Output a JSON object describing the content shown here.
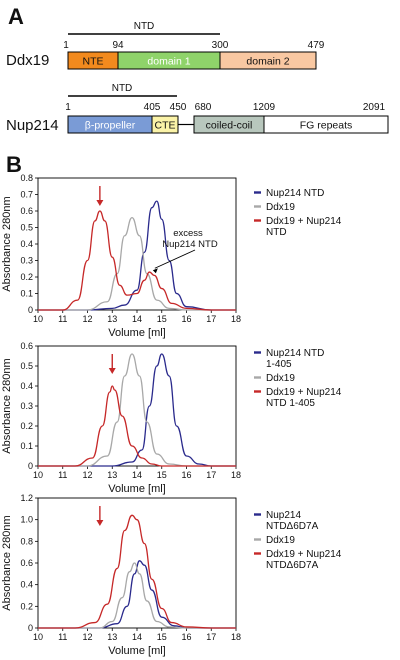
{
  "panels": {
    "a": "A",
    "b": "B"
  },
  "ntd_label": "NTD",
  "ddx19": {
    "name": "Ddx19",
    "positions": [
      "1",
      "94",
      "300",
      "479"
    ],
    "domains": [
      {
        "label": "NTE",
        "color": "#f28a1e",
        "text": "dark"
      },
      {
        "label": "domain 1",
        "color": "#8fd36a",
        "text": "light"
      },
      {
        "label": "domain 2",
        "color": "#f9c8a2",
        "text": "dark"
      }
    ]
  },
  "nup214": {
    "name": "Nup214",
    "positions": [
      "1",
      "405",
      "450",
      "680",
      "1209",
      "2091"
    ],
    "domains": [
      {
        "label": "β-propeller",
        "color": "#7a9bd6",
        "text": "light"
      },
      {
        "label": "CTE",
        "color": "#fbf3a8",
        "text": "dark"
      },
      {
        "label": "coiled-coil",
        "color": "#b8c7bd",
        "text": "dark"
      },
      {
        "label": "FG repeats",
        "color": "#ffffff",
        "text": "dark"
      }
    ]
  },
  "chart_data": [
    {
      "type": "line",
      "xlabel": "Volume [ml]",
      "ylabel": "Absorbance 280nm",
      "xlim": [
        10,
        18
      ],
      "ylim": [
        0,
        0.8
      ],
      "xticks": [
        "10",
        "11",
        "12",
        "13",
        "14",
        "15",
        "16",
        "17",
        "18"
      ],
      "yticks": [
        "0",
        "0.1",
        "0.2",
        "0.3",
        "0.4",
        "0.5",
        "0.6",
        "0.7",
        "0.8"
      ],
      "legend": "right",
      "annotation": [
        "excess",
        "Nup214 NTD"
      ],
      "arrow_x": 12.5,
      "series": [
        {
          "name": "Nup214 NTD",
          "color": "#2a2a8c",
          "x": [
            10.0,
            12.0,
            13.0,
            13.5,
            14.0,
            14.3,
            14.6,
            14.8,
            15.0,
            15.3,
            15.6,
            16.0,
            17.0,
            18.0
          ],
          "y": [
            0.0,
            0.0,
            0.01,
            0.03,
            0.12,
            0.35,
            0.62,
            0.66,
            0.55,
            0.3,
            0.1,
            0.02,
            0.0,
            0.0
          ]
        },
        {
          "name": "Ddx19",
          "color": "#a8a8a8",
          "x": [
            10.0,
            12.0,
            12.8,
            13.2,
            13.5,
            13.8,
            14.1,
            14.4,
            14.8,
            15.3,
            16.0,
            17.0,
            18.0
          ],
          "y": [
            0.0,
            0.0,
            0.05,
            0.22,
            0.45,
            0.56,
            0.45,
            0.22,
            0.06,
            0.01,
            0.0,
            0.0,
            0.0
          ]
        },
        {
          "name": "Ddx19 + Nup214 NTD",
          "color": "#c62828",
          "x": [
            10.0,
            11.0,
            11.6,
            12.0,
            12.3,
            12.5,
            12.7,
            13.0,
            13.3,
            13.6,
            14.0,
            14.3,
            14.5,
            14.7,
            15.0,
            15.4,
            16.0,
            17.0,
            18.0
          ],
          "y": [
            0.0,
            0.0,
            0.06,
            0.3,
            0.54,
            0.6,
            0.54,
            0.32,
            0.15,
            0.09,
            0.1,
            0.18,
            0.23,
            0.21,
            0.13,
            0.04,
            0.01,
            0.0,
            0.0
          ]
        }
      ]
    },
    {
      "type": "line",
      "xlabel": "Volume [ml]",
      "ylabel": "Absorbance 280nm",
      "xlim": [
        10,
        18
      ],
      "ylim": [
        0,
        0.6
      ],
      "xticks": [
        "10",
        "11",
        "12",
        "13",
        "14",
        "15",
        "16",
        "17",
        "18"
      ],
      "yticks": [
        "0",
        "0.1",
        "0.2",
        "0.3",
        "0.4",
        "0.5",
        "0.6"
      ],
      "legend": "right",
      "arrow_x": 13.0,
      "series": [
        {
          "name": "Nup214 NTD 1-405",
          "color": "#2a2a8c",
          "x": [
            10.0,
            13.0,
            13.8,
            14.2,
            14.5,
            14.8,
            15.0,
            15.3,
            15.6,
            16.0,
            16.5,
            17.0,
            18.0
          ],
          "y": [
            0.0,
            0.0,
            0.02,
            0.08,
            0.3,
            0.5,
            0.56,
            0.45,
            0.2,
            0.05,
            0.01,
            0.0,
            0.0
          ]
        },
        {
          "name": "Ddx19",
          "color": "#a8a8a8",
          "x": [
            10.0,
            12.0,
            12.8,
            13.2,
            13.5,
            13.8,
            14.1,
            14.4,
            14.8,
            15.3,
            16.0,
            17.0,
            18.0
          ],
          "y": [
            0.0,
            0.0,
            0.05,
            0.22,
            0.45,
            0.56,
            0.45,
            0.22,
            0.06,
            0.01,
            0.0,
            0.0,
            0.0
          ]
        },
        {
          "name": "Ddx19 + Nup214 NTD 1-405",
          "color": "#c62828",
          "x": [
            10.0,
            11.5,
            12.2,
            12.6,
            12.9,
            13.0,
            13.1,
            13.4,
            13.8,
            14.2,
            14.6,
            15.0,
            16.0,
            18.0
          ],
          "y": [
            0.0,
            0.0,
            0.04,
            0.2,
            0.37,
            0.4,
            0.38,
            0.25,
            0.1,
            0.04,
            0.01,
            0.0,
            0.0,
            0.0
          ]
        }
      ]
    },
    {
      "type": "line",
      "xlabel": "Volume [ml]",
      "ylabel": "Absorbance 280nm",
      "xlim": [
        10,
        18
      ],
      "ylim": [
        0,
        1.2
      ],
      "xticks": [
        "10",
        "11",
        "12",
        "13",
        "14",
        "15",
        "16",
        "17",
        "18"
      ],
      "yticks": [
        "0",
        "0.2",
        "0.4",
        "0.6",
        "0.8",
        "1.0",
        "1.2"
      ],
      "legend": "right",
      "arrow_x": 12.5,
      "series": [
        {
          "name": "Nup214 NTDΔ6D7A",
          "color": "#2a2a8c",
          "x": [
            10.0,
            12.5,
            13.2,
            13.6,
            13.9,
            14.1,
            14.3,
            14.6,
            15.0,
            15.5,
            16.0,
            17.0,
            18.0
          ],
          "y": [
            0.0,
            0.0,
            0.04,
            0.2,
            0.5,
            0.62,
            0.58,
            0.35,
            0.1,
            0.02,
            0.0,
            0.0,
            0.0
          ]
        },
        {
          "name": "Ddx19",
          "color": "#a8a8a8",
          "x": [
            10.0,
            12.5,
            13.0,
            13.4,
            13.7,
            13.9,
            14.1,
            14.4,
            14.8,
            15.3,
            16.0,
            18.0
          ],
          "y": [
            0.0,
            0.0,
            0.06,
            0.28,
            0.52,
            0.6,
            0.5,
            0.25,
            0.06,
            0.01,
            0.0,
            0.0
          ]
        },
        {
          "name": "Ddx19 + Nup214 NTDΔ6D7A",
          "color": "#c62828",
          "x": [
            10.0,
            11.5,
            12.3,
            12.8,
            13.2,
            13.5,
            13.8,
            14.0,
            14.3,
            14.6,
            15.0,
            15.4,
            16.0,
            17.0,
            18.0
          ],
          "y": [
            0.0,
            0.0,
            0.05,
            0.22,
            0.55,
            0.9,
            1.04,
            1.0,
            0.78,
            0.45,
            0.18,
            0.05,
            0.01,
            0.0,
            0.0
          ]
        }
      ]
    }
  ]
}
